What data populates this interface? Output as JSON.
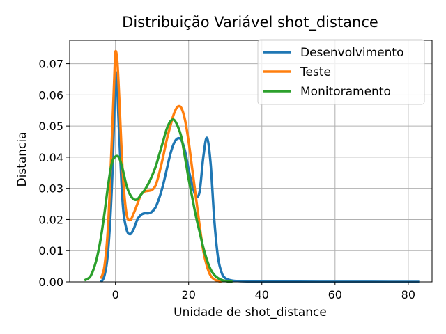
{
  "chart_data": {
    "type": "line",
    "title": "Distribuição Variável shot_distance",
    "xlabel": "Unidade de shot_distance",
    "ylabel": "Distancia",
    "xlim": [
      -12.5,
      86.5
    ],
    "ylim": [
      0,
      0.0775
    ],
    "x_ticks": [
      0,
      20,
      40,
      60,
      80
    ],
    "x_tick_labels": [
      "0",
      "20",
      "40",
      "60",
      "80"
    ],
    "y_ticks": [
      0,
      0.01,
      0.02,
      0.03,
      0.04,
      0.05,
      0.06,
      0.07
    ],
    "y_tick_labels": [
      "0.00",
      "0.01",
      "0.02",
      "0.03",
      "0.04",
      "0.05",
      "0.06",
      "0.07"
    ],
    "grid": true,
    "legend_position": "top-right",
    "series": [
      {
        "name": "Desenvolvimento",
        "color": "#1f77b4",
        "points": [
          [
            -4,
            0
          ],
          [
            -3,
            0.002
          ],
          [
            -2,
            0.01
          ],
          [
            -1,
            0.03
          ],
          [
            -0.3,
            0.055
          ],
          [
            0,
            0.067
          ],
          [
            0.5,
            0.062
          ],
          [
            1,
            0.048
          ],
          [
            2,
            0.025
          ],
          [
            3,
            0.017
          ],
          [
            4,
            0.0153
          ],
          [
            5,
            0.017
          ],
          [
            6,
            0.02
          ],
          [
            7,
            0.0215
          ],
          [
            8,
            0.022
          ],
          [
            9,
            0.022
          ],
          [
            10,
            0.0225
          ],
          [
            11,
            0.024
          ],
          [
            12,
            0.027
          ],
          [
            13,
            0.031
          ],
          [
            14,
            0.036
          ],
          [
            15,
            0.041
          ],
          [
            16,
            0.0445
          ],
          [
            17,
            0.046
          ],
          [
            18,
            0.0455
          ],
          [
            19,
            0.042
          ],
          [
            20,
            0.036
          ],
          [
            21,
            0.031
          ],
          [
            22,
            0.0275
          ],
          [
            23,
            0.029
          ],
          [
            24,
            0.04
          ],
          [
            25,
            0.0462
          ],
          [
            26,
            0.038
          ],
          [
            27,
            0.02
          ],
          [
            28,
            0.008
          ],
          [
            29,
            0.003
          ],
          [
            30,
            0.0012
          ],
          [
            32,
            0.0004
          ],
          [
            35,
            0.0002
          ],
          [
            40,
            0.0001
          ],
          [
            50,
            5e-05
          ],
          [
            60,
            3e-05
          ],
          [
            70,
            2e-05
          ],
          [
            83,
            0
          ]
        ]
      },
      {
        "name": "Teste",
        "color": "#ff7f0e",
        "points": [
          [
            -4,
            0.001
          ],
          [
            -3,
            0.005
          ],
          [
            -2,
            0.018
          ],
          [
            -1,
            0.045
          ],
          [
            -0.3,
            0.066
          ],
          [
            0,
            0.0738
          ],
          [
            0.5,
            0.071
          ],
          [
            1,
            0.06
          ],
          [
            2,
            0.035
          ],
          [
            3,
            0.022
          ],
          [
            4,
            0.0198
          ],
          [
            5,
            0.022
          ],
          [
            6,
            0.025
          ],
          [
            7,
            0.028
          ],
          [
            8,
            0.029
          ],
          [
            9,
            0.0292
          ],
          [
            10,
            0.0295
          ],
          [
            11,
            0.031
          ],
          [
            12,
            0.035
          ],
          [
            13,
            0.04
          ],
          [
            14,
            0.0455
          ],
          [
            15,
            0.05
          ],
          [
            16,
            0.054
          ],
          [
            17,
            0.0562
          ],
          [
            18,
            0.0558
          ],
          [
            19,
            0.052
          ],
          [
            20,
            0.045
          ],
          [
            21,
            0.036
          ],
          [
            22,
            0.027
          ],
          [
            23,
            0.018
          ],
          [
            24,
            0.01
          ],
          [
            25,
            0.005
          ],
          [
            26,
            0.002
          ],
          [
            27,
            0.0008
          ],
          [
            28,
            0.0003
          ],
          [
            29,
            0
          ]
        ]
      },
      {
        "name": "Monitoramento",
        "color": "#2ca02c",
        "points": [
          [
            -8.5,
            0.0005
          ],
          [
            -7,
            0.0015
          ],
          [
            -6,
            0.004
          ],
          [
            -5,
            0.008
          ],
          [
            -4,
            0.014
          ],
          [
            -3,
            0.022
          ],
          [
            -2,
            0.031
          ],
          [
            -1,
            0.038
          ],
          [
            0,
            0.0402
          ],
          [
            1,
            0.0398
          ],
          [
            2,
            0.036
          ],
          [
            3,
            0.031
          ],
          [
            4,
            0.028
          ],
          [
            5,
            0.0265
          ],
          [
            6,
            0.0265
          ],
          [
            7,
            0.028
          ],
          [
            8,
            0.0295
          ],
          [
            9,
            0.0315
          ],
          [
            10,
            0.034
          ],
          [
            11,
            0.037
          ],
          [
            12,
            0.041
          ],
          [
            13,
            0.045
          ],
          [
            14,
            0.049
          ],
          [
            15,
            0.0515
          ],
          [
            16,
            0.052
          ],
          [
            17,
            0.05
          ],
          [
            18,
            0.0465
          ],
          [
            19,
            0.04
          ],
          [
            20,
            0.033
          ],
          [
            21,
            0.027
          ],
          [
            22,
            0.021
          ],
          [
            23,
            0.016
          ],
          [
            24,
            0.011
          ],
          [
            25,
            0.007
          ],
          [
            26,
            0.004
          ],
          [
            27,
            0.0022
          ],
          [
            28,
            0.0012
          ],
          [
            29,
            0.0006
          ],
          [
            30,
            0.0003
          ],
          [
            31,
            0.0001
          ],
          [
            32,
            0
          ]
        ]
      }
    ]
  }
}
